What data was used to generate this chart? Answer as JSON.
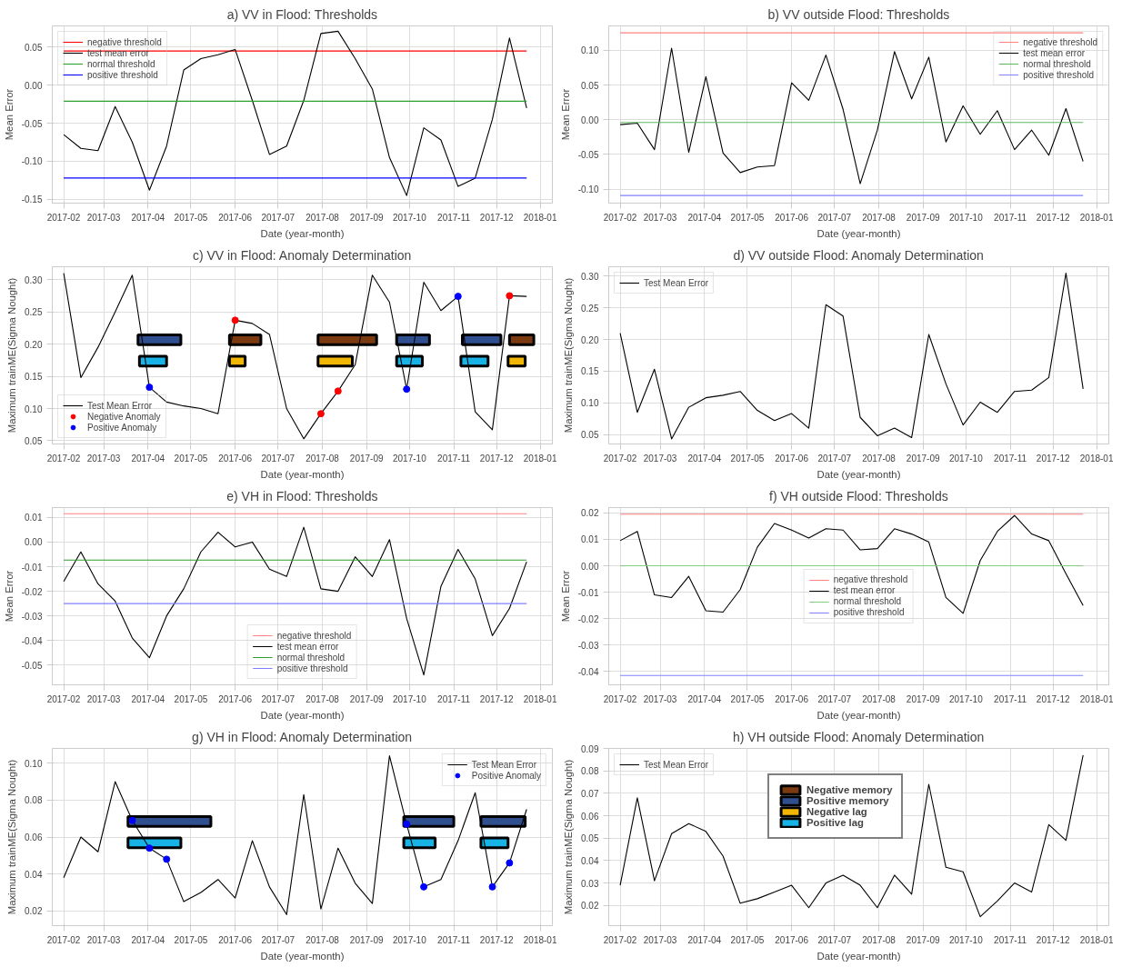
{
  "chart_data": [
    {
      "type": "line",
      "title": "a) VV in Flood: Thresholds",
      "xlabel": "Date (year-month)",
      "ylabel": "Mean Error",
      "xlim": [
        "2017-01-24",
        "2018-01-09"
      ],
      "xticks": [
        "2017-02",
        "2017-03",
        "2017-04",
        "2017-05",
        "2017-06",
        "2017-07",
        "2017-08",
        "2017-09",
        "2017-10",
        "2017-11",
        "2017-12",
        "2018-01"
      ],
      "ylim": [
        -0.155,
        0.078
      ],
      "yticks": [
        -0.15,
        {
          "value": -0.1,
          "label": "-0.10"
        },
        -0.05,
        {
          "value": 0,
          "label": "0.00"
        },
        0.05
      ],
      "grid": true,
      "legend": "top left",
      "x": [
        "2017-02-01",
        "2017-02-13",
        "2017-02-25",
        "2017-03-09",
        "2017-03-21",
        "2017-04-02",
        "2017-04-14",
        "2017-04-26",
        "2017-05-08",
        "2017-05-20",
        "2017-06-01",
        "2017-06-13",
        "2017-06-25",
        "2017-07-07",
        "2017-07-19",
        "2017-07-31",
        "2017-08-12",
        "2017-08-24",
        "2017-09-05",
        "2017-09-17",
        "2017-09-29",
        "2017-10-11",
        "2017-10-23",
        "2017-11-04",
        "2017-11-16",
        "2017-11-28",
        "2017-12-10",
        "2017-12-22"
      ],
      "series": [
        {
          "name": "negative threshold",
          "color": "#ff0000",
          "x": [
            "2017-02-01",
            "2017-12-22"
          ],
          "values": [
            0.045,
            0.045
          ]
        },
        {
          "name": "test mean error",
          "color": "#000000",
          "values": [
            -0.065,
            -0.083,
            -0.086,
            -0.028,
            -0.075,
            -0.138,
            -0.08,
            0.02,
            0.035,
            0.04,
            0.047,
            -0.02,
            -0.091,
            -0.08,
            -0.02,
            0.068,
            0.071,
            0.035,
            -0.005,
            -0.095,
            -0.145,
            -0.056,
            -0.072,
            -0.133,
            -0.122,
            -0.045,
            0.062,
            -0.03
          ]
        },
        {
          "name": "normal threshold",
          "color": "#2ca02c",
          "x": [
            "2017-02-01",
            "2017-12-22"
          ],
          "values": [
            -0.021,
            -0.021
          ]
        },
        {
          "name": "positive threshold",
          "color": "#0000ff",
          "x": [
            "2017-02-01",
            "2017-12-22"
          ],
          "values": [
            -0.122,
            -0.122
          ]
        }
      ]
    },
    {
      "type": "line",
      "title": "b) VV outside Flood: Thresholds",
      "xlabel": "Date (year-month)",
      "ylabel": "Mean Error",
      "xlim": [
        "2017-01-24",
        "2018-01-09"
      ],
      "xticks": [
        "2017-02",
        "2017-03",
        "2017-04",
        "2017-05",
        "2017-06",
        "2017-07",
        "2017-08",
        "2017-09",
        "2017-10",
        "2017-11",
        "2017-12",
        "2018-01"
      ],
      "ylim": [
        -0.12,
        0.135
      ],
      "yticks": [
        {
          "value": -0.1,
          "label": "-0.10"
        },
        -0.05,
        {
          "value": 0,
          "label": "0.00"
        },
        0.05,
        {
          "value": 0.1,
          "label": "0.10"
        }
      ],
      "grid": true,
      "legend": "top right",
      "x": [
        "2017-02-01",
        "2017-02-13",
        "2017-02-25",
        "2017-03-09",
        "2017-03-21",
        "2017-04-02",
        "2017-04-14",
        "2017-04-26",
        "2017-05-08",
        "2017-05-20",
        "2017-06-01",
        "2017-06-13",
        "2017-06-25",
        "2017-07-07",
        "2017-07-19",
        "2017-07-31",
        "2017-08-12",
        "2017-08-24",
        "2017-09-05",
        "2017-09-17",
        "2017-09-29",
        "2017-10-11",
        "2017-10-23",
        "2017-11-04",
        "2017-11-16",
        "2017-11-28",
        "2017-12-10",
        "2017-12-22"
      ],
      "series": [
        {
          "name": "negative threshold",
          "color": "#ff8080",
          "x": [
            "2017-02-01",
            "2017-12-22"
          ],
          "values": [
            0.125,
            0.125
          ]
        },
        {
          "name": "test mean error",
          "color": "#000000",
          "values": [
            -0.007,
            -0.005,
            -0.043,
            0.103,
            -0.047,
            0.062,
            -0.048,
            -0.076,
            -0.068,
            -0.066,
            0.053,
            0.028,
            0.093,
            0.015,
            -0.092,
            -0.015,
            0.098,
            0.03,
            0.09,
            -0.032,
            0.02,
            -0.021,
            0.013,
            -0.043,
            -0.015,
            -0.051,
            0.016,
            -0.06
          ]
        },
        {
          "name": "normal threshold",
          "color": "#5cb85c",
          "x": [
            "2017-02-01",
            "2017-12-22"
          ],
          "values": [
            -0.004,
            -0.004
          ]
        },
        {
          "name": "positive threshold",
          "color": "#8080ff",
          "x": [
            "2017-02-01",
            "2017-12-22"
          ],
          "values": [
            -0.109,
            -0.109
          ]
        }
      ]
    },
    {
      "type": "line",
      "title": "c) VV in Flood: Anomaly Determination",
      "xlabel": "Date (year-month)",
      "ylabel": "Maximum trainME(Sigma Nought)",
      "xlim": [
        "2017-01-24",
        "2018-01-09"
      ],
      "xticks": [
        "2017-02",
        "2017-03",
        "2017-04",
        "2017-05",
        "2017-06",
        "2017-07",
        "2017-08",
        "2017-09",
        "2017-10",
        "2017-11",
        "2017-12",
        "2018-01"
      ],
      "ylim": [
        0.045,
        0.32
      ],
      "yticks": [
        0.05,
        {
          "value": 0.1,
          "label": "0.10"
        },
        0.15,
        {
          "value": 0.2,
          "label": "0.20"
        },
        0.25,
        {
          "value": 0.3,
          "label": "0.30"
        }
      ],
      "grid": true,
      "legend": "bottom left",
      "x": [
        "2017-02-01",
        "2017-02-13",
        "2017-02-25",
        "2017-03-09",
        "2017-03-21",
        "2017-04-02",
        "2017-04-14",
        "2017-04-26",
        "2017-05-08",
        "2017-05-20",
        "2017-06-01",
        "2017-06-13",
        "2017-06-25",
        "2017-07-07",
        "2017-07-19",
        "2017-07-31",
        "2017-08-12",
        "2017-08-24",
        "2017-09-05",
        "2017-09-17",
        "2017-09-29",
        "2017-10-11",
        "2017-10-23",
        "2017-11-04",
        "2017-11-16",
        "2017-11-28",
        "2017-12-10",
        "2017-12-22"
      ],
      "bands": [
        {
          "axis": "x",
          "from": "2017-03-25",
          "to": "2017-04-24",
          "color": "#2f4f8f"
        },
        {
          "axis": "x",
          "from": "2017-05-28",
          "to": "2017-06-19",
          "color": "#7b3a10"
        },
        {
          "axis": "x",
          "from": "2017-07-29",
          "to": "2017-09-08",
          "color": "#7b3a10"
        },
        {
          "axis": "x",
          "from": "2017-09-22",
          "to": "2017-10-15",
          "color": "#2f4f8f"
        },
        {
          "axis": "x",
          "from": "2017-11-07",
          "to": "2017-12-04",
          "color": "#2f4f8f"
        },
        {
          "axis": "x",
          "from": "2017-12-10",
          "to": "2017-12-27",
          "color": "#7b3a10"
        },
        {
          "axis": "x",
          "from": "2017-03-26",
          "to": "2017-04-14",
          "color": "#17b3e6"
        },
        {
          "axis": "x",
          "from": "2017-05-28",
          "to": "2017-06-08",
          "color": "#f2b705"
        },
        {
          "axis": "x",
          "from": "2017-07-29",
          "to": "2017-08-22",
          "color": "#f2b705"
        },
        {
          "axis": "x",
          "from": "2017-09-22",
          "to": "2017-10-10",
          "color": "#17b3e6"
        },
        {
          "axis": "x",
          "from": "2017-11-06",
          "to": "2017-11-25",
          "color": "#17b3e6"
        },
        {
          "axis": "x",
          "from": "2017-12-09",
          "to": "2017-12-21",
          "color": "#f2b705"
        }
      ],
      "series": [
        {
          "name": "Test Mean Error",
          "color": "#000000",
          "values": [
            0.31,
            0.148,
            0.195,
            0.25,
            0.307,
            0.133,
            0.11,
            0.104,
            0.1,
            0.092,
            0.237,
            0.232,
            0.215,
            0.1,
            0.053,
            0.092,
            0.127,
            0.168,
            0.307,
            0.265,
            0.13,
            0.296,
            0.252,
            0.274,
            0.095,
            0.067,
            0.275,
            0.274
          ]
        },
        {
          "name": "Negative Anomaly",
          "type": "scatter",
          "color": "#ff0000",
          "x": [
            "2017-06-01",
            "2017-07-31",
            "2017-08-12",
            "2017-12-10"
          ],
          "values": [
            0.237,
            0.092,
            0.127,
            0.275
          ]
        },
        {
          "name": "Positive Anomaly",
          "type": "scatter",
          "color": "#0000ff",
          "x": [
            "2017-04-02",
            "2017-09-29",
            "2017-11-04"
          ],
          "values": [
            0.133,
            0.13,
            0.274
          ]
        }
      ]
    },
    {
      "type": "line",
      "title": "d) VV outside Flood: Anomaly Determination",
      "xlabel": "Date (year-month)",
      "ylabel": "Maximum trainME(Sigma Nought)",
      "xlim": [
        "2017-01-24",
        "2018-01-09"
      ],
      "xticks": [
        "2017-02",
        "2017-03",
        "2017-04",
        "2017-05",
        "2017-06",
        "2017-07",
        "2017-08",
        "2017-09",
        "2017-10",
        "2017-11",
        "2017-12",
        "2018-01"
      ],
      "ylim": [
        0.035,
        0.315
      ],
      "yticks": [
        0.05,
        {
          "value": 0.1,
          "label": "0.10"
        },
        0.15,
        {
          "value": 0.2,
          "label": "0.20"
        },
        0.25,
        {
          "value": 0.3,
          "label": "0.30"
        }
      ],
      "grid": true,
      "legend": "top left",
      "x": [
        "2017-02-01",
        "2017-02-13",
        "2017-02-25",
        "2017-03-09",
        "2017-03-21",
        "2017-04-02",
        "2017-04-14",
        "2017-04-26",
        "2017-05-08",
        "2017-05-20",
        "2017-06-01",
        "2017-06-13",
        "2017-06-25",
        "2017-07-07",
        "2017-07-19",
        "2017-07-31",
        "2017-08-12",
        "2017-08-24",
        "2017-09-05",
        "2017-09-17",
        "2017-09-29",
        "2017-10-11",
        "2017-10-23",
        "2017-11-04",
        "2017-11-16",
        "2017-11-28",
        "2017-12-10",
        "2017-12-22"
      ],
      "series": [
        {
          "name": "Test Mean Error",
          "color": "#000000",
          "values": [
            0.21,
            0.085,
            0.153,
            0.043,
            0.093,
            0.108,
            0.112,
            0.118,
            0.088,
            0.072,
            0.083,
            0.06,
            0.255,
            0.237,
            0.077,
            0.048,
            0.06,
            0.045,
            0.208,
            0.13,
            0.065,
            0.101,
            0.085,
            0.118,
            0.12,
            0.14,
            0.305,
            0.122
          ]
        }
      ]
    },
    {
      "type": "line",
      "title": "e) VH in Flood: Thresholds",
      "xlabel": "Date (year-month)",
      "ylabel": "Mean Error",
      "xlim": [
        "2017-01-24",
        "2018-01-09"
      ],
      "xticks": [
        "2017-02",
        "2017-03",
        "2017-04",
        "2017-05",
        "2017-06",
        "2017-07",
        "2017-08",
        "2017-09",
        "2017-10",
        "2017-11",
        "2017-12",
        "2018-01"
      ],
      "ylim": [
        -0.058,
        0.014
      ],
      "yticks": [
        -0.05,
        -0.04,
        -0.03,
        -0.02,
        -0.01,
        {
          "value": 0,
          "label": "0.00"
        },
        0.01
      ],
      "grid": true,
      "legend": "bottom",
      "x": [
        "2017-02-01",
        "2017-02-13",
        "2017-02-25",
        "2017-03-09",
        "2017-03-21",
        "2017-04-02",
        "2017-04-14",
        "2017-04-26",
        "2017-05-08",
        "2017-05-20",
        "2017-06-01",
        "2017-06-13",
        "2017-06-25",
        "2017-07-07",
        "2017-07-19",
        "2017-07-31",
        "2017-08-12",
        "2017-08-24",
        "2017-09-05",
        "2017-09-17",
        "2017-09-29",
        "2017-10-11",
        "2017-10-23",
        "2017-11-04",
        "2017-11-16",
        "2017-11-28",
        "2017-12-10",
        "2017-12-22"
      ],
      "series": [
        {
          "name": "negative threshold",
          "color": "#ff8080",
          "x": [
            "2017-02-01",
            "2017-12-22"
          ],
          "values": [
            0.0115,
            0.0115
          ]
        },
        {
          "name": "test mean error",
          "color": "#000000",
          "values": [
            -0.016,
            -0.004,
            -0.017,
            -0.024,
            -0.039,
            -0.047,
            -0.03,
            -0.019,
            -0.004,
            0.004,
            -0.002,
            0.0,
            -0.011,
            -0.014,
            0.006,
            -0.019,
            -0.02,
            -0.006,
            -0.014,
            0.001,
            -0.031,
            -0.054,
            -0.018,
            -0.003,
            -0.015,
            -0.038,
            -0.027,
            -0.008
          ]
        },
        {
          "name": "normal threshold",
          "color": "#2e9e2e",
          "x": [
            "2017-02-01",
            "2017-12-22"
          ],
          "values": [
            -0.0073,
            -0.0073
          ]
        },
        {
          "name": "positive threshold",
          "color": "#8080ff",
          "x": [
            "2017-02-01",
            "2017-12-22"
          ],
          "values": [
            -0.025,
            -0.025
          ]
        }
      ]
    },
    {
      "type": "line",
      "title": "f) VH outside Flood: Thresholds",
      "xlabel": "Date (year-month)",
      "ylabel": "Mean Error",
      "xlim": [
        "2017-01-24",
        "2018-01-09"
      ],
      "xticks": [
        "2017-02",
        "2017-03",
        "2017-04",
        "2017-05",
        "2017-06",
        "2017-07",
        "2017-08",
        "2017-09",
        "2017-10",
        "2017-11",
        "2017-12",
        "2018-01"
      ],
      "ylim": [
        -0.045,
        0.022
      ],
      "yticks": [
        -0.04,
        -0.03,
        -0.02,
        -0.01,
        {
          "value": 0,
          "label": "0.00"
        },
        0.01,
        0.02
      ],
      "grid": true,
      "legend": "center",
      "x": [
        "2017-02-01",
        "2017-02-13",
        "2017-02-25",
        "2017-03-09",
        "2017-03-21",
        "2017-04-02",
        "2017-04-14",
        "2017-04-26",
        "2017-05-08",
        "2017-05-20",
        "2017-06-01",
        "2017-06-13",
        "2017-06-25",
        "2017-07-07",
        "2017-07-19",
        "2017-07-31",
        "2017-08-12",
        "2017-08-24",
        "2017-09-05",
        "2017-09-17",
        "2017-09-29",
        "2017-10-11",
        "2017-10-23",
        "2017-11-04",
        "2017-11-16",
        "2017-11-28",
        "2017-12-10",
        "2017-12-22"
      ],
      "series": [
        {
          "name": "negative threshold",
          "color": "#ff8080",
          "x": [
            "2017-02-01",
            "2017-12-22"
          ],
          "values": [
            0.0195,
            0.0195
          ]
        },
        {
          "name": "test mean error",
          "color": "#000000",
          "values": [
            0.0095,
            0.013,
            -0.011,
            -0.012,
            -0.004,
            -0.017,
            -0.0175,
            -0.009,
            0.007,
            0.016,
            0.0135,
            0.0105,
            0.014,
            0.0135,
            0.006,
            0.0065,
            0.014,
            0.012,
            0.009,
            -0.012,
            -0.018,
            0.002,
            0.013,
            0.019,
            0.012,
            0.0095,
            -0.003,
            -0.015
          ]
        },
        {
          "name": "normal threshold",
          "color": "#80cc80",
          "x": [
            "2017-02-01",
            "2017-12-22"
          ],
          "values": [
            0.0,
            0.0
          ]
        },
        {
          "name": "positive threshold",
          "color": "#8080ff",
          "x": [
            "2017-02-01",
            "2017-12-22"
          ],
          "values": [
            -0.0415,
            -0.0415
          ]
        }
      ]
    },
    {
      "type": "line",
      "title": "g) VH in Flood: Anomaly Determination",
      "xlabel": "Date (year-month)",
      "ylabel": "Maximum trainME(Sigma Nought)",
      "xlim": [
        "2017-01-24",
        "2018-01-09"
      ],
      "xticks": [
        "2017-02",
        "2017-03",
        "2017-04",
        "2017-05",
        "2017-06",
        "2017-07",
        "2017-08",
        "2017-09",
        "2017-10",
        "2017-11",
        "2017-12",
        "2018-01"
      ],
      "ylim": [
        0.012,
        0.108
      ],
      "yticks": [
        0.02,
        0.04,
        0.06,
        0.08,
        {
          "value": 0.1,
          "label": "0.10"
        }
      ],
      "grid": true,
      "legend": "top right",
      "x": [
        "2017-02-01",
        "2017-02-13",
        "2017-02-25",
        "2017-03-09",
        "2017-03-21",
        "2017-04-02",
        "2017-04-14",
        "2017-04-26",
        "2017-05-08",
        "2017-05-20",
        "2017-06-01",
        "2017-06-13",
        "2017-06-25",
        "2017-07-07",
        "2017-07-19",
        "2017-07-31",
        "2017-08-12",
        "2017-08-24",
        "2017-09-05",
        "2017-09-17",
        "2017-09-29",
        "2017-10-11",
        "2017-10-23",
        "2017-11-04",
        "2017-11-16",
        "2017-11-28",
        "2017-12-10",
        "2017-12-22"
      ],
      "bands": [
        {
          "axis": "x",
          "from": "2017-03-18",
          "to": "2017-05-15",
          "color": "#2f4f8f"
        },
        {
          "axis": "x",
          "from": "2017-09-27",
          "to": "2017-11-01",
          "color": "#2f4f8f"
        },
        {
          "axis": "x",
          "from": "2017-11-20",
          "to": "2017-12-21",
          "color": "#2f4f8f"
        },
        {
          "axis": "x",
          "from": "2017-03-18",
          "to": "2017-04-24",
          "color": "#17b3e6"
        },
        {
          "axis": "x",
          "from": "2017-09-27",
          "to": "2017-10-19",
          "color": "#17b3e6"
        },
        {
          "axis": "x",
          "from": "2017-11-20",
          "to": "2017-12-09",
          "color": "#17b3e6"
        }
      ],
      "series": [
        {
          "name": "Test Mean Error",
          "color": "#000000",
          "values": [
            0.038,
            0.06,
            0.052,
            0.09,
            0.069,
            0.054,
            0.048,
            0.025,
            0.03,
            0.037,
            0.027,
            0.058,
            0.033,
            0.018,
            0.083,
            0.021,
            0.054,
            0.035,
            0.024,
            0.104,
            0.067,
            0.033,
            0.037,
            0.058,
            0.084,
            0.033,
            0.046,
            0.075
          ]
        },
        {
          "name": "Positive Anomaly",
          "type": "scatter",
          "color": "#0000ff",
          "x": [
            "2017-03-21",
            "2017-04-02",
            "2017-04-14",
            "2017-09-29",
            "2017-10-11",
            "2017-11-28",
            "2017-12-10"
          ],
          "values": [
            0.069,
            0.054,
            0.048,
            0.067,
            0.033,
            0.033,
            0.046
          ]
        }
      ]
    },
    {
      "type": "line",
      "title": "h) VH outside Flood: Anomaly Determination",
      "xlabel": "Date (year-month)",
      "ylabel": "Maximum trainME(Sigma Nought)",
      "xlim": [
        "2017-01-24",
        "2018-01-09"
      ],
      "xticks": [
        "2017-02",
        "2017-03",
        "2017-04",
        "2017-05",
        "2017-06",
        "2017-07",
        "2017-08",
        "2017-09",
        "2017-10",
        "2017-11",
        "2017-12",
        "2018-01"
      ],
      "ylim": [
        0.011,
        0.09
      ],
      "yticks": [
        0.02,
        0.03,
        0.04,
        0.05,
        0.06,
        0.07,
        0.08,
        0.09
      ],
      "grid": true,
      "legend": "top left",
      "x": [
        "2017-02-01",
        "2017-02-13",
        "2017-02-25",
        "2017-03-09",
        "2017-03-21",
        "2017-04-02",
        "2017-04-14",
        "2017-04-26",
        "2017-05-08",
        "2017-05-20",
        "2017-06-01",
        "2017-06-13",
        "2017-06-25",
        "2017-07-07",
        "2017-07-19",
        "2017-07-31",
        "2017-08-12",
        "2017-08-24",
        "2017-09-05",
        "2017-09-17",
        "2017-09-29",
        "2017-10-11",
        "2017-10-23",
        "2017-11-04",
        "2017-11-16",
        "2017-11-28",
        "2017-12-10",
        "2017-12-22"
      ],
      "series": [
        {
          "name": "Test Mean Error",
          "color": "#000000",
          "values": [
            0.029,
            0.068,
            0.031,
            0.052,
            0.0565,
            0.053,
            0.042,
            0.021,
            0.023,
            0.026,
            0.029,
            0.019,
            0.03,
            0.0335,
            0.029,
            0.019,
            0.0335,
            0.025,
            0.074,
            0.037,
            0.035,
            0.015,
            0.022,
            0.03,
            0.026,
            0.056,
            0.049,
            0.087
          ]
        },
        {
          "name": "Negative memory",
          "type": "bar",
          "color": "#7b3a10",
          "values": [
            null,
            null,
            null,
            null,
            null,
            null,
            null,
            null,
            null,
            null,
            null,
            null,
            null,
            null,
            null,
            null,
            null,
            null,
            null,
            null,
            null,
            null,
            null,
            null,
            null,
            null,
            null,
            null
          ]
        },
        {
          "name": "Positive memory",
          "type": "bar",
          "color": "#2f4f8f",
          "values": [
            null,
            null,
            null,
            null,
            null,
            null,
            null,
            null,
            null,
            null,
            null,
            null,
            null,
            null,
            null,
            null,
            null,
            null,
            null,
            null,
            null,
            null,
            null,
            null,
            null,
            null,
            null,
            null
          ]
        },
        {
          "name": "Negative lag",
          "type": "bar",
          "color": "#f2b705",
          "values": [
            null,
            null,
            null,
            null,
            null,
            null,
            null,
            null,
            null,
            null,
            null,
            null,
            null,
            null,
            null,
            null,
            null,
            null,
            null,
            null,
            null,
            null,
            null,
            null,
            null,
            null,
            null,
            null
          ]
        },
        {
          "name": "Positive lag",
          "type": "bar",
          "color": "#17b3e6",
          "values": [
            null,
            null,
            null,
            null,
            null,
            null,
            null,
            null,
            null,
            null,
            null,
            null,
            null,
            null,
            null,
            null,
            null,
            null,
            null,
            null,
            null,
            null,
            null,
            null,
            null,
            null,
            null,
            null
          ]
        }
      ]
    }
  ]
}
